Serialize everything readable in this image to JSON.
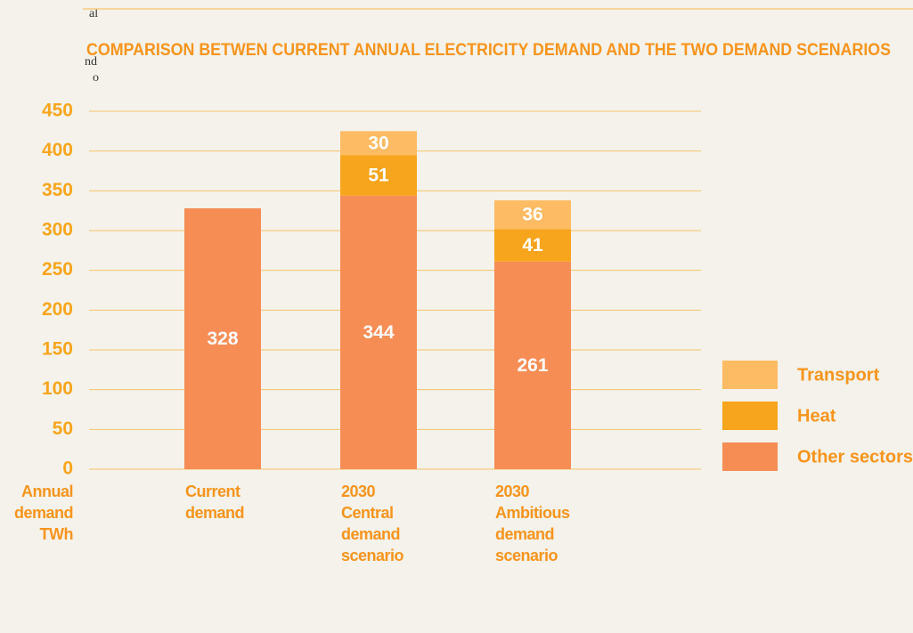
{
  "sidebar_fragments": [
    "al",
    "nd",
    "o"
  ],
  "chart_data": {
    "type": "stacked_bar",
    "title": "COMPARISON BETWEN CURRENT ANNUAL ELECTRICITY DEMAND AND THE TWO DEMAND SCENARIOS",
    "y_label": "Annual demand TWh",
    "categories": [
      "Current demand",
      "2030 Central demand scenario",
      "2030 Ambitious demand scenario"
    ],
    "series": [
      {
        "name": "Other sectors",
        "color": "#f68d55",
        "values": [
          328,
          344,
          261
        ]
      },
      {
        "name": "Heat",
        "color": "#f7a51c",
        "values": [
          null,
          51,
          41
        ]
      },
      {
        "name": "Transport",
        "color": "#fdbb63",
        "values": [
          null,
          30,
          36
        ]
      }
    ],
    "ylim": [
      0,
      450
    ],
    "yticks": [
      0,
      50,
      100,
      150,
      200,
      250,
      300,
      350,
      400,
      450
    ],
    "grid": true
  }
}
